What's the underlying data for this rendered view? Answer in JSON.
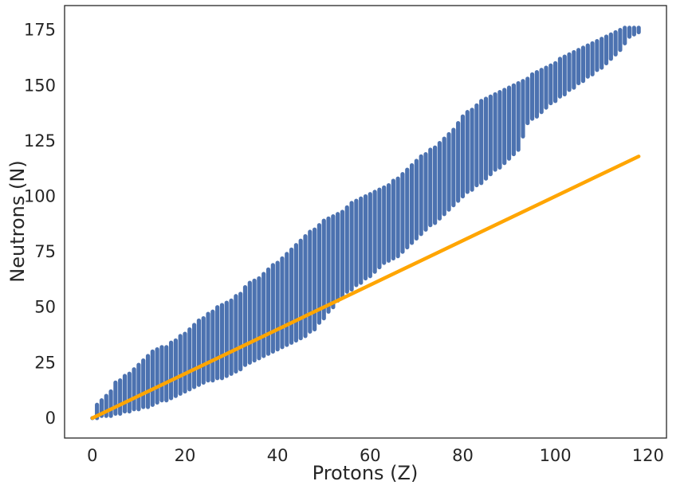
{
  "chart_data": {
    "type": "scatter",
    "xlabel": "Protons (Z)",
    "ylabel": "Neutrons (N)",
    "xlim": [
      -6,
      124
    ],
    "ylim": [
      -9,
      186
    ],
    "xticks": [
      0,
      20,
      40,
      60,
      80,
      100,
      120
    ],
    "yticks": [
      0,
      25,
      50,
      75,
      100,
      125,
      150,
      175
    ],
    "grid": false,
    "legend": "none",
    "series": [
      {
        "mark": "vertical-band",
        "color": "#4c72b0",
        "note_units": "isotope neutron ranges per proton number: [Z, N_min, N_max]",
        "anchors": [
          [
            0,
            0,
            0
          ],
          [
            1,
            0,
            6
          ],
          [
            2,
            1,
            8
          ],
          [
            3,
            1,
            10
          ],
          [
            4,
            1,
            12
          ],
          [
            5,
            2,
            16
          ],
          [
            6,
            2,
            17
          ],
          [
            8,
            3,
            20
          ],
          [
            10,
            4,
            24
          ],
          [
            12,
            5,
            28
          ],
          [
            14,
            7,
            31
          ],
          [
            16,
            8,
            32
          ],
          [
            18,
            10,
            35
          ],
          [
            20,
            12,
            38
          ],
          [
            22,
            14,
            42
          ],
          [
            24,
            16,
            45
          ],
          [
            26,
            17,
            48
          ],
          [
            28,
            18,
            51
          ],
          [
            30,
            20,
            53
          ],
          [
            32,
            22,
            56
          ],
          [
            34,
            25,
            61
          ],
          [
            36,
            27,
            63
          ],
          [
            38,
            29,
            67
          ],
          [
            40,
            31,
            70
          ],
          [
            42,
            33,
            74
          ],
          [
            44,
            35,
            78
          ],
          [
            46,
            37,
            82
          ],
          [
            48,
            40,
            85
          ],
          [
            50,
            45,
            89
          ],
          [
            52,
            50,
            91
          ],
          [
            54,
            55,
            93
          ],
          [
            56,
            58,
            97
          ],
          [
            58,
            61,
            99
          ],
          [
            60,
            64,
            101
          ],
          [
            62,
            68,
            103
          ],
          [
            64,
            71,
            105
          ],
          [
            66,
            73,
            108
          ],
          [
            68,
            77,
            112
          ],
          [
            70,
            81,
            116
          ],
          [
            72,
            85,
            119
          ],
          [
            74,
            88,
            122
          ],
          [
            76,
            92,
            126
          ],
          [
            78,
            96,
            130
          ],
          [
            80,
            100,
            136
          ],
          [
            82,
            103,
            139
          ],
          [
            84,
            106,
            143
          ],
          [
            86,
            110,
            145
          ],
          [
            88,
            113,
            147
          ],
          [
            90,
            117,
            149
          ],
          [
            92,
            121,
            151
          ],
          [
            94,
            133,
            153
          ],
          [
            96,
            136,
            156
          ],
          [
            98,
            140,
            158
          ],
          [
            100,
            143,
            160
          ],
          [
            102,
            146,
            163
          ],
          [
            104,
            149,
            165
          ],
          [
            106,
            152,
            167
          ],
          [
            108,
            155,
            169
          ],
          [
            110,
            158,
            171
          ],
          [
            112,
            162,
            173
          ],
          [
            114,
            166,
            175
          ],
          [
            116,
            172,
            176
          ],
          [
            118,
            174,
            176
          ]
        ]
      },
      {
        "mark": "line",
        "color": "#ffa500",
        "x": [
          0,
          118
        ],
        "y": [
          0,
          118
        ]
      }
    ]
  }
}
